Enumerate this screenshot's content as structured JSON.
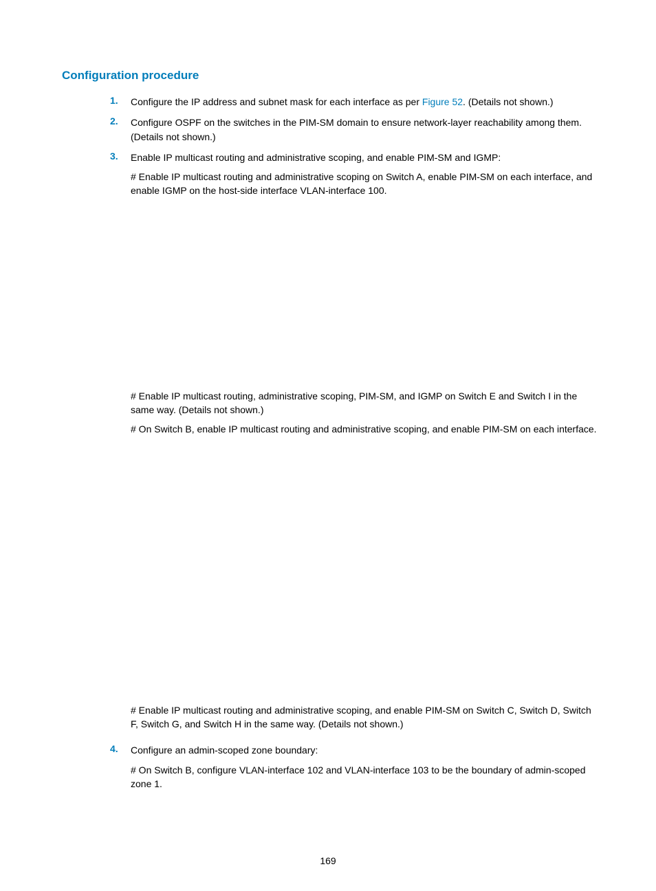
{
  "colors": {
    "accent": "#007dba",
    "text": "#000000",
    "background": "#ffffff"
  },
  "typography": {
    "body_font_family": "Arial, Helvetica, sans-serif",
    "body_fontsize_pt": 10.5,
    "heading_fontsize_pt": 12.5,
    "heading_weight": "bold",
    "list_num_weight": "bold"
  },
  "heading": "Configuration procedure",
  "items": [
    {
      "num": "1.",
      "text_before": "Configure the IP address and subnet mask for each interface as per ",
      "link": "Figure 52",
      "text_after": ". (Details not shown.)"
    },
    {
      "num": "2.",
      "text": "Configure OSPF on the switches in the PIM-SM domain to ensure network-layer reachability among them. (Details not shown.)"
    },
    {
      "num": "3.",
      "text": "Enable IP multicast routing and administrative scoping, and enable PIM-SM and IGMP:",
      "sub": [
        "# Enable IP multicast routing and administrative scoping on Switch A, enable PIM-SM on each interface, and enable IGMP on the host-side interface VLAN-interface 100.",
        "# Enable IP multicast routing, administrative scoping, PIM-SM, and IGMP on Switch E and Switch I in the same way. (Details not shown.)",
        "# On Switch B, enable IP multicast routing and administrative scoping, and enable PIM-SM on each interface.",
        "# Enable IP multicast routing and administrative scoping, and enable PIM-SM on Switch C, Switch D, Switch F, Switch G, and Switch H in the same way. (Details not shown.)"
      ]
    },
    {
      "num": "4.",
      "text": "Configure an admin-scoped zone boundary:",
      "sub": [
        "# On Switch B, configure VLAN-interface 102 and VLAN-interface 103 to be the boundary of admin-scoped zone 1."
      ]
    }
  ],
  "page_number": "169"
}
